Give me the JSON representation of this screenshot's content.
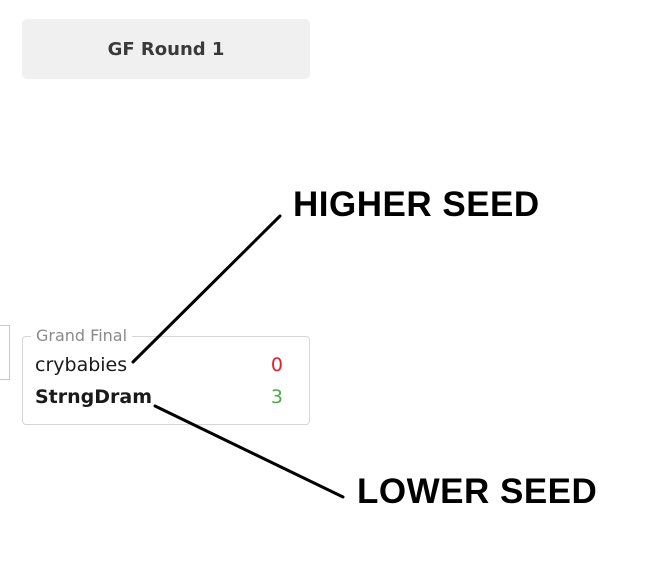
{
  "round": {
    "title": "GF Round 1"
  },
  "match": {
    "label": "Grand Final",
    "teams": [
      {
        "name": "crybabies",
        "score": "0",
        "result": "loss"
      },
      {
        "name": "StrngDram",
        "score": "3",
        "result": "win"
      }
    ]
  },
  "annotations": {
    "higher_seed": "HIGHER SEED",
    "lower_seed": "LOWER SEED"
  },
  "colors": {
    "header_bg": "#f0f0f0",
    "loss_score": "#e0202a",
    "win_score": "#4caa4c",
    "card_border": "#d6d6d6"
  }
}
